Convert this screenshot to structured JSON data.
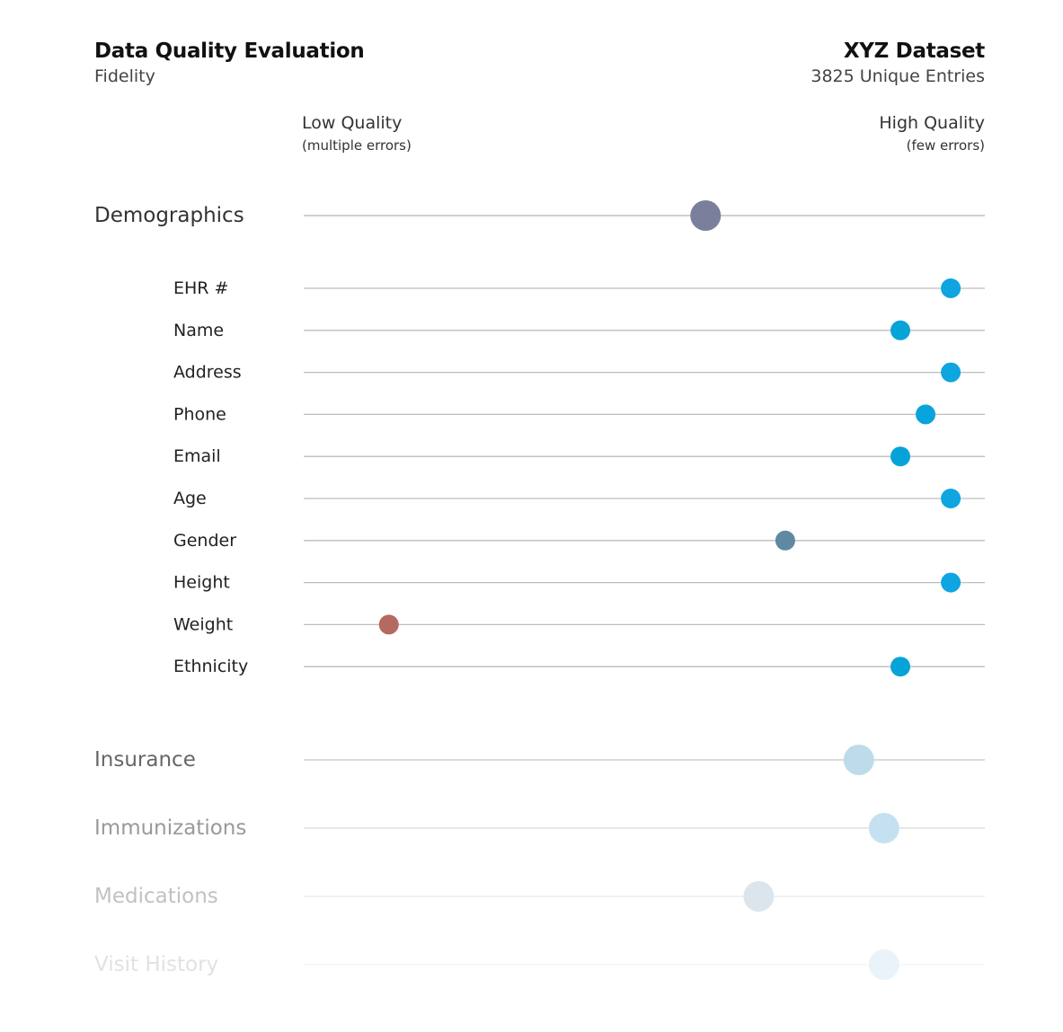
{
  "header": {
    "title": "Data Quality Evaluation",
    "subtitle": "Fidelity",
    "dataset_name": "XYZ Dataset",
    "dataset_entries": "3825 Unique Entries"
  },
  "scale": {
    "low_label": "Low Quality",
    "low_sub": "(multiple errors)",
    "high_label": "High Quality",
    "high_sub": "(few errors)"
  },
  "chart_data": {
    "type": "scatter",
    "title": "Data Quality Evaluation",
    "subtitle": "Fidelity",
    "xlim": [
      0,
      1
    ],
    "x_min_label": "Low Quality",
    "x_max_label": "High Quality",
    "grid": false,
    "groups": [
      {
        "name": "Demographics",
        "value": 0.59,
        "color": "#7a7f9c",
        "opacity": 1.0,
        "items": [
          {
            "name": "EHR #",
            "value": 0.95,
            "color": "#0ea5e0"
          },
          {
            "name": "Name",
            "value": 0.876,
            "color": "#06a3d9"
          },
          {
            "name": "Address",
            "value": 0.95,
            "color": "#0ea5e0"
          },
          {
            "name": "Phone",
            "value": 0.913,
            "color": "#0aa4dd"
          },
          {
            "name": "Email",
            "value": 0.876,
            "color": "#06a3d9"
          },
          {
            "name": "Age",
            "value": 0.95,
            "color": "#0ea5e0"
          },
          {
            "name": "Gender",
            "value": 0.707,
            "color": "#5f88a3"
          },
          {
            "name": "Height",
            "value": 0.95,
            "color": "#0ea5e0"
          },
          {
            "name": "Weight",
            "value": 0.125,
            "color": "#b56a5f"
          },
          {
            "name": "Ethnicity",
            "value": 0.876,
            "color": "#06a3d9"
          }
        ]
      },
      {
        "name": "Insurance",
        "value": 0.815,
        "color": "#bddbeb",
        "opacity": 0.75
      },
      {
        "name": "Immunizations",
        "value": 0.852,
        "color": "#c5e1f1",
        "opacity": 0.5
      },
      {
        "name": "Medications",
        "value": 0.668,
        "color": "#dde5ec",
        "opacity": 0.3
      },
      {
        "name": "Visit History",
        "value": 0.852,
        "color": "#eaf3f9",
        "opacity": 0.15
      }
    ]
  }
}
